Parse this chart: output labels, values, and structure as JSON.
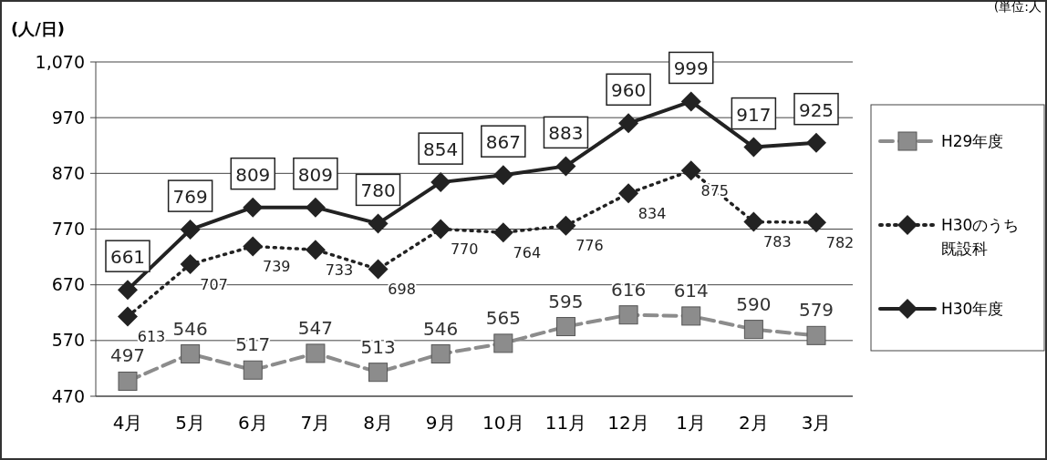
{
  "chart_data": {
    "type": "line",
    "ylabel": "(人/日)",
    "annotations": [
      "(単位:人"
    ],
    "categories": [
      "4月",
      "5月",
      "6月",
      "7月",
      "8月",
      "9月",
      "10月",
      "11月",
      "12月",
      "1月",
      "2月",
      "3月"
    ],
    "series": [
      {
        "name": "H29年度",
        "color": "#8c8c8c",
        "marker": "square",
        "line_style": "dashed",
        "values": [
          497,
          546,
          517,
          547,
          513,
          546,
          565,
          595,
          616,
          614,
          590,
          579
        ]
      },
      {
        "name": "H30のうち既設科",
        "color": "#222222",
        "marker": "diamond",
        "line_style": "dotted",
        "values": [
          613,
          707,
          739,
          733,
          698,
          770,
          764,
          776,
          834,
          875,
          783,
          782
        ]
      },
      {
        "name": "H30年度",
        "color": "#222222",
        "marker": "diamond",
        "line_style": "solid",
        "values": [
          661,
          769,
          809,
          809,
          780,
          854,
          867,
          883,
          960,
          999,
          917,
          925
        ]
      }
    ],
    "ylim": [
      470,
      1070
    ],
    "yticks": [
      470,
      570,
      670,
      770,
      870,
      970,
      {
        "value": 1070,
        "label": "1,070"
      }
    ],
    "grid": "y",
    "legend": "right",
    "data_labels": true
  }
}
